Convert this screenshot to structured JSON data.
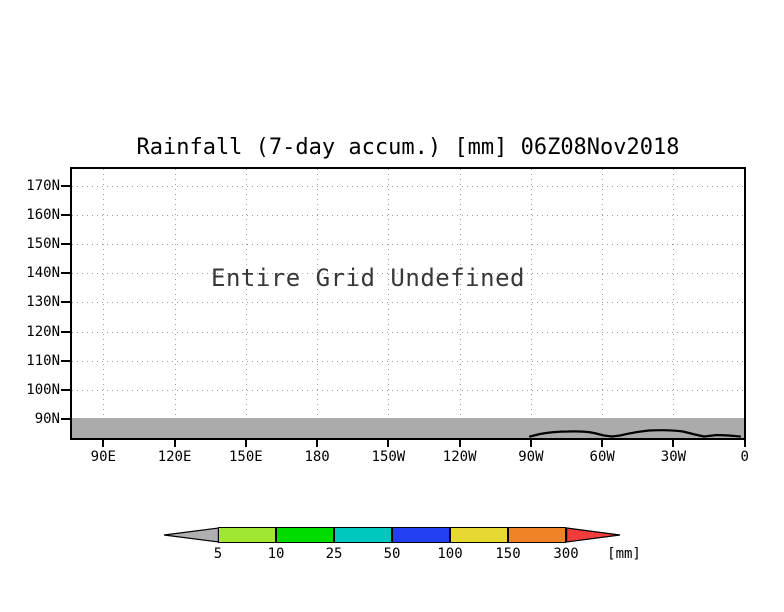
{
  "title": "Rainfall (7-day accum.) [mm] 06Z08Nov2018",
  "plot": {
    "undefined_message": "Entire Grid Undefined",
    "y_tick_labels": [
      "170N",
      "160N",
      "150N",
      "140N",
      "130N",
      "120N",
      "110N",
      "100N",
      "90N"
    ],
    "x_tick_labels": [
      "90E",
      "120E",
      "150E",
      "180",
      "150W",
      "120W",
      "90W",
      "60W",
      "30W",
      "0"
    ]
  },
  "colorbar": {
    "levels": [
      "5",
      "10",
      "25",
      "50",
      "100",
      "150",
      "300"
    ],
    "unit_label": "[mm]",
    "segment_colors": [
      "#a0e632",
      "#00dc00",
      "#00c8be",
      "#2340f0",
      "#e6da32",
      "#f08228"
    ],
    "below_min_color": "#b0b0b0",
    "above_max_color": "#f23c3c"
  },
  "colors": {
    "undefined_band": "#ababab",
    "grid": "#9e9e9e",
    "frame": "#000000",
    "background": "#ffffff"
  },
  "chart_data": {
    "type": "heatmap",
    "title": "Rainfall (7-day accum.) [mm] 06Z08Nov2018",
    "variable": "Rainfall (7-day accum.)",
    "unit": "mm",
    "valid_time_label": "06Z08Nov2018",
    "x_axis": {
      "kind": "longitude",
      "tick_labels": [
        "90E",
        "120E",
        "150E",
        "180",
        "150W",
        "120W",
        "90W",
        "60W",
        "30W",
        "0"
      ]
    },
    "y_axis": {
      "kind": "latitude",
      "tick_labels": [
        "170N",
        "160N",
        "150N",
        "140N",
        "130N",
        "120N",
        "110N",
        "100N",
        "90N"
      ]
    },
    "values": null,
    "status_annotation": "Entire Grid Undefined",
    "colorbar_levels": [
      5,
      10,
      25,
      50,
      100,
      150,
      300
    ],
    "colorbar_unit": "[mm]",
    "grid": true,
    "legend_position": "bottom-center"
  }
}
